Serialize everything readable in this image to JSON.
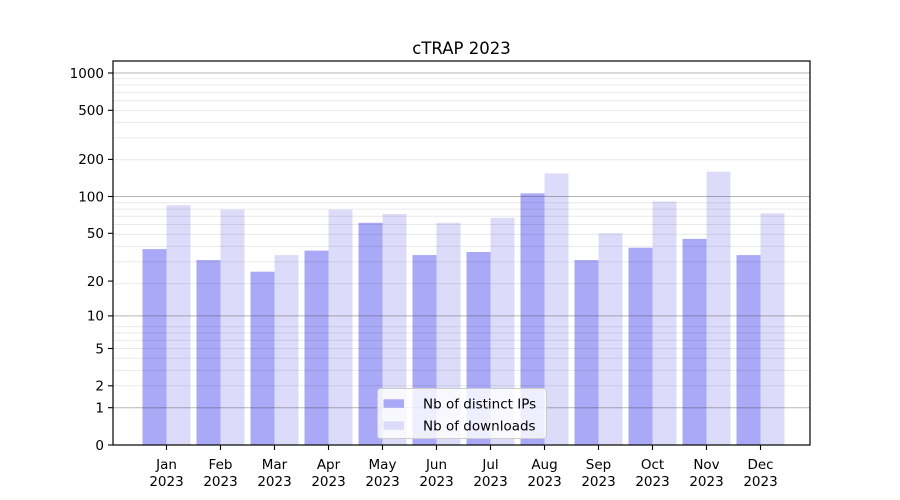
{
  "chart_data": {
    "type": "bar",
    "title": "cTRAP 2023",
    "categories": [
      "Jan\n2023",
      "Feb\n2023",
      "Mar\n2023",
      "Apr\n2023",
      "May\n2023",
      "Jun\n2023",
      "Jul\n2023",
      "Aug\n2023",
      "Sep\n2023",
      "Oct\n2023",
      "Nov\n2023",
      "Dec\n2023"
    ],
    "series": [
      {
        "name": "Nb of distinct IPs",
        "color": "#a9a9f7",
        "values": [
          37,
          30,
          24,
          36,
          61,
          33,
          35,
          106,
          30,
          38,
          45,
          33
        ]
      },
      {
        "name": "Nb of downloads",
        "color": "#dcdcfa",
        "values": [
          85,
          78,
          33,
          78,
          72,
          61,
          67,
          154,
          50,
          91,
          159,
          73
        ]
      }
    ],
    "yscale": "log1p",
    "yticks": [
      0,
      1,
      2,
      5,
      10,
      20,
      50,
      100,
      200,
      500,
      1000
    ],
    "major_grid_values": [
      1,
      10,
      100,
      1000
    ],
    "ylim": [
      0,
      1250
    ],
    "xlabel": "",
    "ylabel": "",
    "grid": "on",
    "legend_position": "lower center",
    "legend": [
      "Nb of distinct IPs",
      "Nb of downloads"
    ],
    "colors": {
      "background": "#ffffff",
      "axis": "#000000",
      "major_grid": "#b5b5b5",
      "minor_grid": "#e9e9e9",
      "legend_border": "#cccccc"
    }
  }
}
